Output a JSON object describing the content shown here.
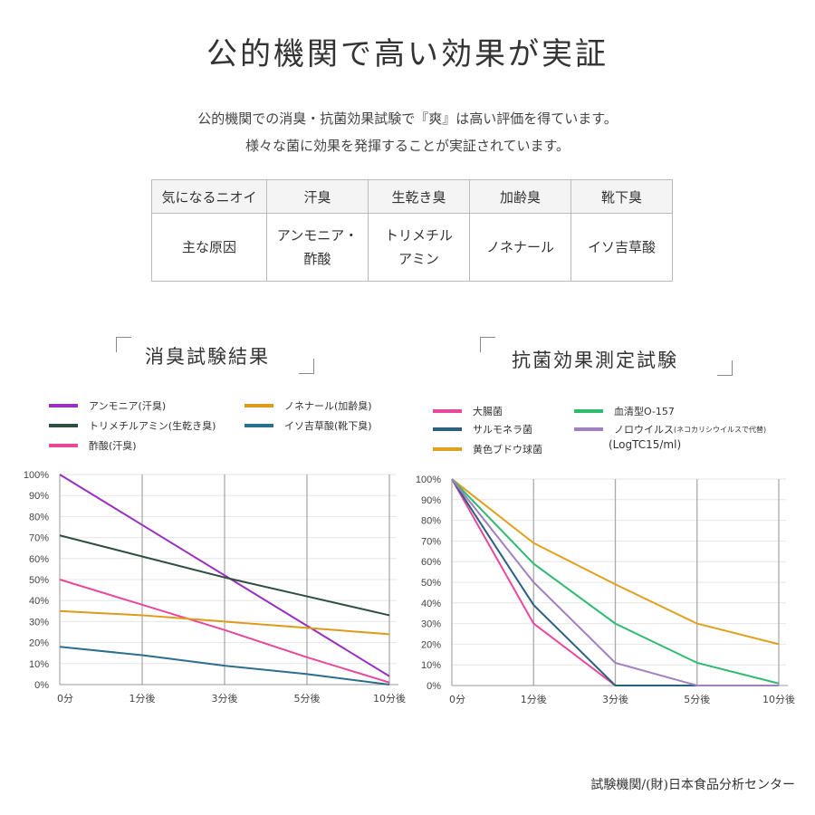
{
  "header": {
    "title": "公的機関で高い効果が実証",
    "lead": [
      "公的機関での消臭・抗菌効果試験で『爽』は高い評価を得ています。",
      "様々な菌に効果を発揮することが実証されています。"
    ]
  },
  "table": {
    "headers": [
      "気になるニオイ",
      "汗臭",
      "生乾き臭",
      "加齢臭",
      "靴下臭"
    ],
    "row": [
      "主な原因",
      "アンモニア・\n酢酸",
      "トリメチル\nアミン",
      "ノネナール",
      "イソ吉草酸"
    ]
  },
  "chart_data": [
    {
      "type": "line",
      "title": "消臭試験結果",
      "categories": [
        "0分",
        "1分後",
        "3分後",
        "5分後",
        "10分後"
      ],
      "yticks": [
        "0%",
        "10%",
        "20%",
        "30%",
        "40%",
        "50%",
        "60%",
        "70%",
        "80%",
        "90%",
        "100%"
      ],
      "ylim": [
        0,
        100
      ],
      "grid": true,
      "legend": "top",
      "series": [
        {
          "name": "アンモニア(汗臭)",
          "color": "#9b2fc0",
          "values": [
            100,
            76,
            52,
            28,
            4
          ]
        },
        {
          "name": "トリメチルアミン(生乾き臭)",
          "color": "#2f4f40",
          "values": [
            71,
            61,
            51,
            42,
            33
          ]
        },
        {
          "name": "酢酸(汗臭)",
          "color": "#e8489a",
          "values": [
            50,
            38,
            26,
            13,
            1
          ]
        },
        {
          "name": "ノネナール(加齢臭)",
          "color": "#e09a1a",
          "values": [
            35,
            33,
            30,
            27,
            24
          ]
        },
        {
          "name": "イソ吉草酸(靴下臭)",
          "color": "#2a6f8f",
          "values": [
            18,
            14,
            9,
            5,
            0
          ]
        }
      ]
    },
    {
      "type": "line",
      "title": "抗菌効果測定試験",
      "note": "(LogTC15/ml)",
      "categories": [
        "0分",
        "1分後",
        "3分後",
        "5分後",
        "10分後"
      ],
      "yticks": [
        "0%",
        "10%",
        "20%",
        "30%",
        "40%",
        "50%",
        "60%",
        "70%",
        "80%",
        "90%",
        "100%"
      ],
      "ylim": [
        0,
        100
      ],
      "grid": true,
      "legend": "top",
      "series": [
        {
          "name": "大腸菌",
          "color": "#e8489a",
          "values": [
            100,
            30,
            0,
            0,
            0
          ]
        },
        {
          "name": "サルモネラ菌",
          "color": "#2a6080",
          "values": [
            100,
            39,
            0,
            0,
            0
          ]
        },
        {
          "name": "黄色ブドウ球菌",
          "color": "#e0a020",
          "values": [
            100,
            69,
            49,
            30,
            20
          ]
        },
        {
          "name": "血清型O-157",
          "color": "#2ebb70",
          "values": [
            100,
            59,
            30,
            11,
            1
          ]
        },
        {
          "name": "ノロウイルス",
          "name_note": "(ネコカリシウイルスで代替)",
          "color": "#a080c0",
          "values": [
            100,
            50,
            11,
            0,
            0
          ]
        }
      ]
    }
  ],
  "footer": "試験機関/(財)日本食品分析センター"
}
